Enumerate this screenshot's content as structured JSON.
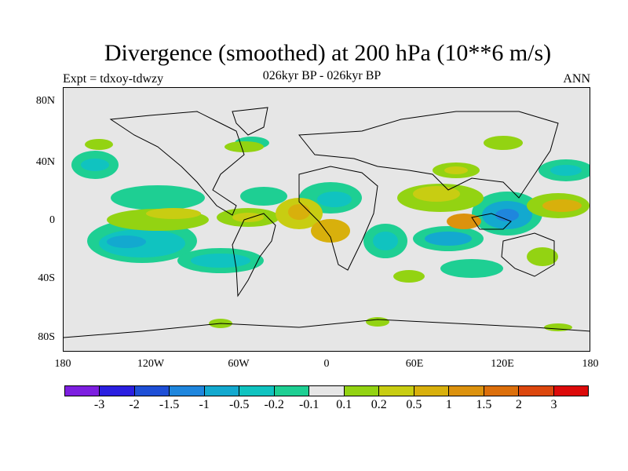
{
  "title": "Divergence (smoothed) at 200 hPa (10**6 m/s)",
  "subtitle": "026kyr BP - 026kyr BP",
  "experiment": "Expt = tdxoy-tdwzy",
  "season": "ANN",
  "map": {
    "lat_labels": [
      "80N",
      "40N",
      "0",
      "40S",
      "80S"
    ],
    "lon_labels": [
      "180",
      "120W",
      "60W",
      "0",
      "60E",
      "120E",
      "180"
    ]
  },
  "colorbar": {
    "colors": [
      "#7d1fe0",
      "#2b1fe0",
      "#1e4fd6",
      "#1f86dd",
      "#13a9cf",
      "#10c3c0",
      "#1ecf93",
      "#e6e6e6",
      "#93d312",
      "#c8cd12",
      "#d8b00c",
      "#dc920e",
      "#dc6f0b",
      "#dc470e",
      "#dc0a0a"
    ],
    "labels": [
      "-3",
      "-2",
      "-1.5",
      "-1",
      "-0.5",
      "-0.2",
      "-0.1",
      "0.1",
      "0.2",
      "0.5",
      "1",
      "1.5",
      "2",
      "3"
    ]
  },
  "colors": {
    "land_outline": "#000000",
    "neutral": "#e6e6e6"
  }
}
